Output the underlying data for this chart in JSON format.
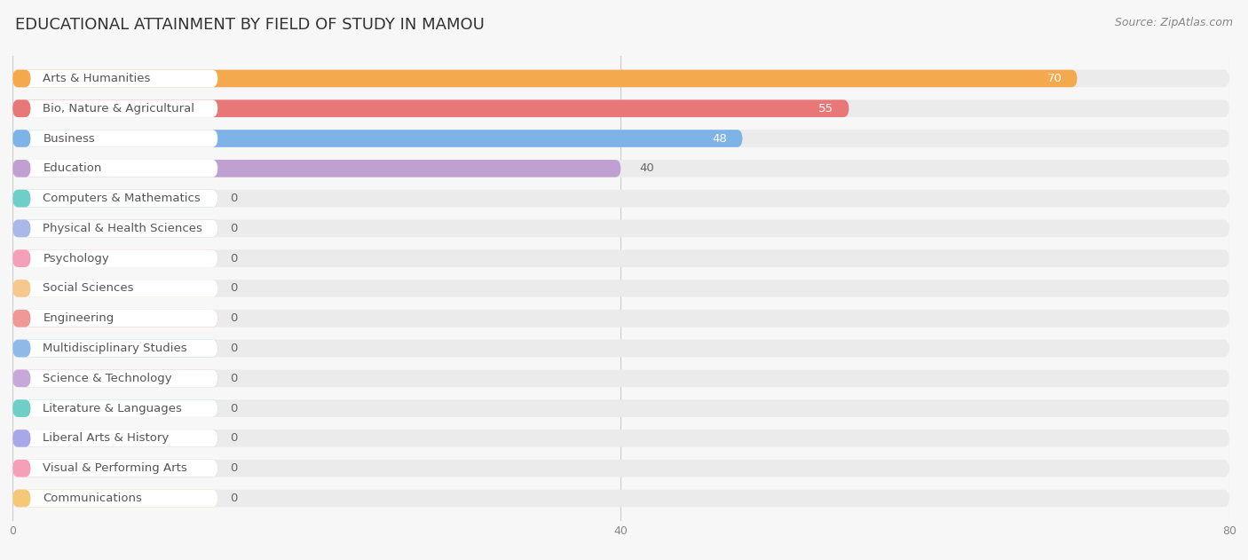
{
  "title": "EDUCATIONAL ATTAINMENT BY FIELD OF STUDY IN MAMOU",
  "source": "Source: ZipAtlas.com",
  "categories": [
    "Arts & Humanities",
    "Bio, Nature & Agricultural",
    "Business",
    "Education",
    "Computers & Mathematics",
    "Physical & Health Sciences",
    "Psychology",
    "Social Sciences",
    "Engineering",
    "Multidisciplinary Studies",
    "Science & Technology",
    "Literature & Languages",
    "Liberal Arts & History",
    "Visual & Performing Arts",
    "Communications"
  ],
  "values": [
    70,
    55,
    48,
    40,
    0,
    0,
    0,
    0,
    0,
    0,
    0,
    0,
    0,
    0,
    0
  ],
  "bar_colors": [
    "#F5A94E",
    "#E87878",
    "#7EB3E8",
    "#C0A0D0",
    "#6ECFC8",
    "#A8B8E8",
    "#F5A0B8",
    "#F5C890",
    "#F09898",
    "#90B8E8",
    "#C8A8D8",
    "#6ECFC8",
    "#A8A8E8",
    "#F5A0B8",
    "#F5C878"
  ],
  "xlim": [
    0,
    80
  ],
  "xticks": [
    0,
    40,
    80
  ],
  "background_color": "#f7f7f7",
  "bar_bg_color": "#ebebeb",
  "label_pill_color": "#ffffff",
  "title_fontsize": 13,
  "label_fontsize": 9.5,
  "value_fontsize": 9.5,
  "source_fontsize": 9,
  "label_text_color": "#555555",
  "value_text_color_inside": "#ffffff",
  "value_text_color_outside": "#666666"
}
